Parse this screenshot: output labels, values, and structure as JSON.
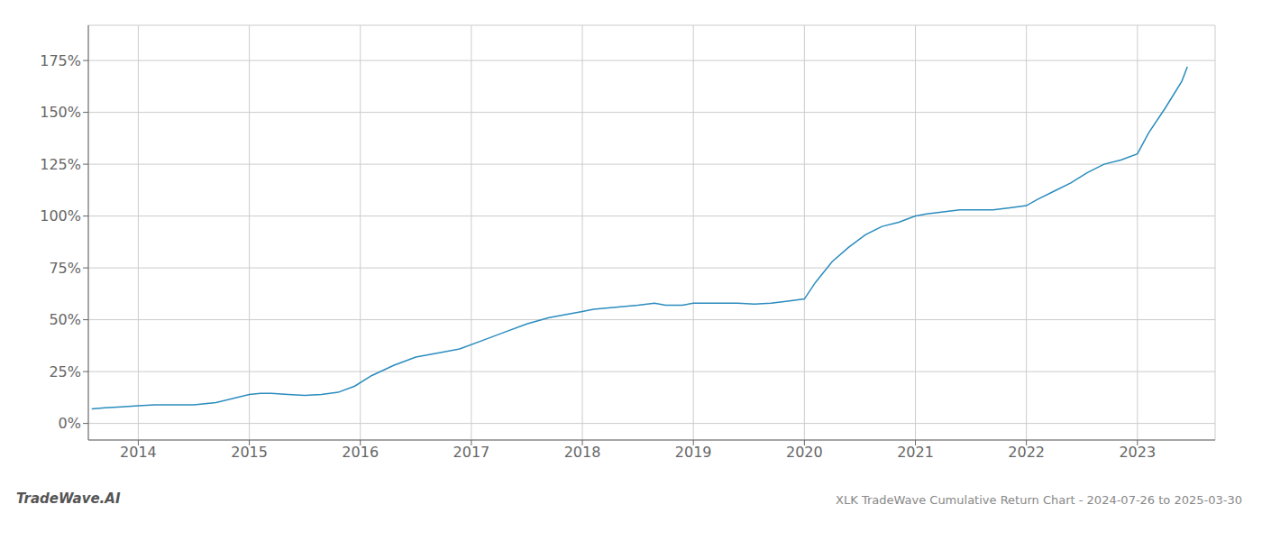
{
  "chart_data": {
    "type": "line",
    "title": "XLK TradeWave Cumulative Return Chart - 2024-07-26 to 2025-03-30",
    "annotations": [
      "TradeWave.AI"
    ],
    "color": "#2b8cbe",
    "grid": true,
    "xlim": [
      2013.55,
      2023.7
    ],
    "xticks": [
      2014,
      2015,
      2016,
      2017,
      2018,
      2019,
      2020,
      2021,
      2022,
      2023
    ],
    "ylim": [
      -8,
      192
    ],
    "yticks": [
      {
        "value": 0,
        "label": "0%"
      },
      {
        "value": 25,
        "label": "25%"
      },
      {
        "value": 50,
        "label": "50%"
      },
      {
        "value": 75,
        "label": "75%"
      },
      {
        "value": 100,
        "label": "100%"
      },
      {
        "value": 125,
        "label": "125%"
      },
      {
        "value": 150,
        "label": "150%"
      },
      {
        "value": 175,
        "label": "175%"
      }
    ],
    "x": [
      2013.58,
      2013.7,
      2013.85,
      2014.0,
      2014.15,
      2014.3,
      2014.5,
      2014.7,
      2014.85,
      2015.0,
      2015.1,
      2015.2,
      2015.35,
      2015.5,
      2015.65,
      2015.8,
      2015.95,
      2016.1,
      2016.3,
      2016.5,
      2016.7,
      2016.9,
      2017.1,
      2017.3,
      2017.5,
      2017.7,
      2017.9,
      2018.0,
      2018.1,
      2018.3,
      2018.5,
      2018.65,
      2018.75,
      2018.9,
      2019.0,
      2019.1,
      2019.25,
      2019.4,
      2019.55,
      2019.7,
      2019.85,
      2020.0,
      2020.1,
      2020.25,
      2020.4,
      2020.55,
      2020.7,
      2020.85,
      2021.0,
      2021.1,
      2021.25,
      2021.4,
      2021.55,
      2021.7,
      2021.85,
      2022.0,
      2022.1,
      2022.25,
      2022.4,
      2022.55,
      2022.7,
      2022.85,
      2023.0,
      2023.1,
      2023.25,
      2023.4,
      2023.45
    ],
    "values": [
      7,
      7.5,
      8,
      8.5,
      9,
      9,
      9,
      10,
      12,
      14,
      14.5,
      14.5,
      14,
      13.5,
      14,
      15,
      18,
      23,
      28,
      32,
      34,
      36,
      40,
      44,
      48,
      51,
      53,
      54,
      55,
      56,
      57,
      58,
      57,
      57,
      58,
      58,
      58,
      58,
      57.5,
      58,
      59,
      60,
      68,
      78,
      85,
      91,
      95,
      97,
      100,
      101,
      102,
      103,
      103,
      103,
      104,
      105,
      108,
      112,
      116,
      121,
      125,
      127,
      130,
      140,
      152,
      165,
      172
    ]
  }
}
